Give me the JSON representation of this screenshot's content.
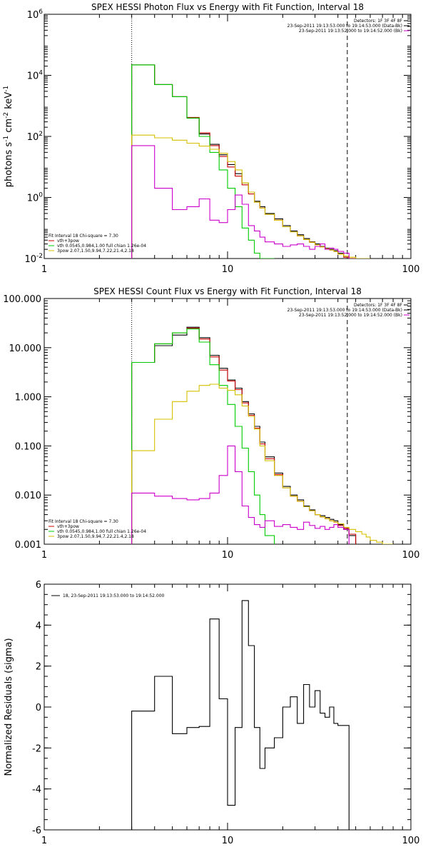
{
  "chart_data": [
    {
      "type": "line",
      "title": "SPEX HESSI Photon Flux vs Energy with Fit Function, Interval 18",
      "ylabel_html": "photons s<tspan dy='-5' font-size='9'>-1</tspan><tspan dy='5'> cm</tspan><tspan dy='-5' font-size='9'>-2</tspan><tspan dy='5'> keV</tspan><tspan dy='-5' font-size='9'>-1</tspan>",
      "ylabel": "photons s-1 cm-2 keV-1",
      "xscale": "log",
      "yscale": "log",
      "xlim": [
        1,
        100
      ],
      "ylim": [
        0.01,
        1000000
      ],
      "xticks": [
        {
          "v": 1,
          "label": "1"
        },
        {
          "v": 10,
          "label": "10"
        },
        {
          "v": 100,
          "label": "100"
        }
      ],
      "yticks": [
        {
          "v": 0.01,
          "label": "10",
          "exp": "-2"
        },
        {
          "v": 1,
          "label": "10",
          "exp": "0"
        },
        {
          "v": 100,
          "label": "10",
          "exp": "2"
        },
        {
          "v": 10000,
          "label": "10",
          "exp": "4"
        },
        {
          "v": 1000000,
          "label": "10",
          "exp": "6"
        }
      ],
      "vlines": [
        {
          "x": 3.0,
          "style": "dotted"
        },
        {
          "x": 45,
          "style": "dashed"
        }
      ],
      "legend_top": {
        "header": "Detectors: 1F 3F 4F 8F",
        "items": [
          {
            "label": "23-Sep-2011 19:13:53.000 to 19:14:53.000 (Data-Bk)",
            "color": "#000000"
          },
          {
            "label": "23-Sep-2011 19:13:52.000 to 19:14:52.000 (Bk)",
            "color": "#cc00cc"
          }
        ]
      },
      "legend_bottom": {
        "header": "Fit Interval 18   Chi-square = 7.30",
        "items": [
          {
            "label": "vth+3pow",
            "color": "#cc0000"
          },
          {
            "label": "vth 0.0545,0.984,1.00  full chian 1.26e-04",
            "color": "#00cc00"
          },
          {
            "label": "3pow 2.07,1.50,9.94,7.22,21.4,2.18",
            "color": "#d4c000"
          }
        ]
      },
      "edges": [
        3.0,
        3.5,
        4.0,
        4.5,
        5.0,
        5.5,
        6.0,
        6.5,
        7.0,
        7.5,
        8.0,
        8.5,
        9.0,
        9.5,
        10.0,
        10.5,
        11.0,
        12.0,
        13.0,
        14.0,
        15.0,
        16.0,
        18.0,
        20.0,
        22.0,
        24.0,
        26.0,
        28.0,
        30.0,
        32.0,
        34.0,
        36.0,
        38.0,
        40.0,
        43.0,
        46.0,
        50.0,
        54.0,
        57.0,
        60.0
      ],
      "series": [
        {
          "name": "Data-Bk",
          "color": "#000000",
          "values": [
            22000,
            22000,
            5000,
            5000,
            2000,
            2000,
            400,
            400,
            120,
            120,
            55,
            55,
            25,
            25,
            12,
            12,
            6,
            3,
            1.5,
            0.75,
            0.5,
            0.3,
            0.2,
            0.12,
            0.08,
            0.06,
            0.045,
            0.035,
            0.03,
            0.025,
            0.022,
            0.02,
            0.018,
            0.015,
            0.012,
            0.01,
            null,
            null,
            null
          ]
        },
        {
          "name": "vth+3pow",
          "color": "#cc0000",
          "values": [
            22000,
            22000,
            5000,
            5000,
            2000,
            2000,
            420,
            420,
            130,
            130,
            50,
            50,
            22,
            22,
            10,
            10,
            5,
            2.6,
            1.3,
            0.7,
            0.45,
            0.28,
            0.18,
            0.11,
            0.075,
            0.055,
            0.042,
            0.034,
            0.028,
            0.024,
            0.021,
            0.019,
            0.017,
            0.014,
            0.011,
            0.009,
            null,
            null,
            null
          ]
        },
        {
          "name": "vth",
          "color": "#00cc00",
          "values": [
            22000,
            22000,
            5000,
            5000,
            2000,
            2000,
            400,
            400,
            100,
            100,
            30,
            30,
            8,
            8,
            2,
            2,
            0.5,
            0.1,
            0.04,
            0.015,
            0.01,
            0.01,
            null,
            null,
            null,
            null,
            null,
            null,
            null,
            null,
            null,
            null,
            null,
            null,
            null,
            null,
            null,
            null,
            null
          ]
        },
        {
          "name": "3pow",
          "color": "#d4c000",
          "values": [
            110,
            110,
            90,
            90,
            75,
            75,
            60,
            60,
            48,
            48,
            38,
            38,
            28,
            28,
            15,
            15,
            8,
            3,
            1.5,
            0.7,
            0.45,
            0.28,
            0.18,
            0.11,
            0.075,
            0.055,
            0.042,
            0.034,
            0.028,
            0.024,
            0.021,
            0.019,
            0.017,
            0.014,
            0.012,
            0.011,
            0.0095,
            0.009,
            0.008
          ]
        },
        {
          "name": "Bk",
          "color": "#cc00cc",
          "values": [
            50,
            50,
            2.0,
            2.0,
            0.4,
            0.4,
            0.5,
            0.5,
            0.9,
            0.9,
            0.18,
            0.18,
            0.15,
            0.15,
            0.4,
            0.4,
            1.2,
            0.6,
            0.12,
            0.08,
            0.05,
            0.035,
            0.03,
            0.025,
            0.028,
            0.03,
            0.025,
            0.02,
            0.025,
            0.03,
            0.02,
            0.022,
            0.02,
            0.017,
            0.015,
            null,
            null,
            null,
            null
          ]
        }
      ]
    },
    {
      "type": "line",
      "title": "SPEX HESSI Count Flux vs Energy with Fit Function, Interval 18",
      "xscale": "log",
      "yscale": "log",
      "xlim": [
        1,
        100
      ],
      "ylim": [
        0.001,
        100
      ],
      "xticks": [
        {
          "v": 1,
          "label": "1"
        },
        {
          "v": 10,
          "label": "10"
        },
        {
          "v": 100,
          "label": "100"
        }
      ],
      "yticks": [
        {
          "v": 0.001,
          "label": "0.001"
        },
        {
          "v": 0.01,
          "label": "0.010"
        },
        {
          "v": 0.1,
          "label": "0.100"
        },
        {
          "v": 1,
          "label": "1.000"
        },
        {
          "v": 10,
          "label": "10.000"
        },
        {
          "v": 100,
          "label": "100.000"
        }
      ],
      "vlines": [
        {
          "x": 3.0,
          "style": "dotted"
        },
        {
          "x": 45,
          "style": "dashed"
        }
      ],
      "legend_top": {
        "header": "Detectors: 1F 3F 4F 8F",
        "items": [
          {
            "label": "23-Sep-2011 19:13:53.000 to 19:14:53.000 (Data-Bk)",
            "color": "#000000"
          },
          {
            "label": "23-Sep-2011 19:13:52.000 to 19:14:52.000 (Bk)",
            "color": "#cc00cc"
          }
        ]
      },
      "legend_bottom": {
        "header": "Fit Interval 18   Chi-square = 7.30",
        "items": [
          {
            "label": "vth+3pow",
            "color": "#cc0000"
          },
          {
            "label": "vth 0.0545,0.984,1.00  full chian 1.26e-04",
            "color": "#00cc00"
          },
          {
            "label": "3pow 2.07,1.50,9.94,7.22,21.4,2.18",
            "color": "#d4c000"
          }
        ]
      },
      "edges": [
        3.0,
        4.0,
        5.0,
        6.0,
        7.0,
        8.0,
        9.0,
        10.0,
        11.0,
        12.0,
        13.0,
        14.0,
        15.0,
        16.0,
        18.0,
        20.0,
        22.0,
        24.0,
        26.0,
        28.0,
        30.0,
        32.0,
        34.0,
        36.0,
        38.0,
        40.0,
        43.0,
        46.0,
        50.0,
        54.0,
        57.0,
        60.0,
        65.0,
        70.0,
        75.0,
        80.0
      ],
      "series": [
        {
          "name": "Data-Bk",
          "color": "#000000",
          "values": [
            5,
            11,
            18,
            26,
            16,
            7,
            3.8,
            2.2,
            1.5,
            0.8,
            0.45,
            0.25,
            0.12,
            0.06,
            0.028,
            0.015,
            0.01,
            0.008,
            0.006,
            0.005,
            0.004,
            0.0038,
            0.0035,
            0.0032,
            0.003,
            0.0025,
            0.002,
            0.0015,
            null,
            null,
            null,
            null,
            null,
            null,
            null
          ]
        },
        {
          "name": "vth+3pow",
          "color": "#cc0000",
          "values": [
            5,
            12,
            20,
            25,
            15,
            6.5,
            3.5,
            2.1,
            1.4,
            0.75,
            0.42,
            0.23,
            0.11,
            0.055,
            0.026,
            0.014,
            0.0095,
            0.0075,
            0.0058,
            0.0048,
            0.004,
            0.0036,
            0.0033,
            0.003,
            0.0028,
            0.0024,
            0.0021,
            0.0016,
            null,
            null,
            null,
            null,
            null,
            null,
            null
          ]
        },
        {
          "name": "vth",
          "color": "#00cc00",
          "values": [
            5,
            12,
            20,
            24,
            13,
            4.5,
            1.7,
            0.7,
            0.25,
            0.09,
            0.03,
            0.01,
            0.004,
            0.0015,
            null,
            null,
            null,
            null,
            null,
            null,
            null,
            null,
            null,
            null,
            null,
            null,
            null,
            null,
            null,
            null,
            null,
            null,
            null,
            null,
            null
          ]
        },
        {
          "name": "3pow",
          "color": "#d4c000",
          "values": [
            0.08,
            0.35,
            0.8,
            1.3,
            1.7,
            1.8,
            1.5,
            1.35,
            1.1,
            0.65,
            0.4,
            0.22,
            0.1,
            0.05,
            0.025,
            0.014,
            0.0095,
            0.0075,
            0.0058,
            0.0048,
            0.004,
            0.0036,
            0.0033,
            0.003,
            0.0028,
            0.0026,
            0.0022,
            0.002,
            0.0018,
            0.0016,
            0.0014,
            0.0012,
            0.0011,
            0.001,
            0.0009
          ]
        },
        {
          "name": "Bk",
          "color": "#cc00cc",
          "values": [
            0.011,
            0.0095,
            0.0085,
            0.008,
            0.0085,
            0.011,
            0.025,
            0.1,
            0.03,
            0.006,
            0.0035,
            0.0025,
            0.0022,
            0.003,
            0.0023,
            0.0025,
            0.0022,
            0.002,
            0.0028,
            0.0024,
            0.0021,
            0.0023,
            0.002,
            0.0022,
            0.0025,
            0.0022,
            0.002,
            null,
            null,
            null,
            null,
            null,
            null,
            null,
            null
          ]
        }
      ]
    },
    {
      "type": "line",
      "title": "",
      "ylabel": "Normalized Residuals (sigma)",
      "xscale": "log",
      "yscale": "linear",
      "xlim": [
        1,
        100
      ],
      "ylim": [
        -6,
        6
      ],
      "xticks": [
        {
          "v": 1,
          "label": "1"
        },
        {
          "v": 10,
          "label": "10"
        },
        {
          "v": 100,
          "label": "100"
        }
      ],
      "yticks": [
        {
          "v": -6,
          "label": "-6"
        },
        {
          "v": -4,
          "label": "-4"
        },
        {
          "v": -2,
          "label": "-2"
        },
        {
          "v": 0,
          "label": "0"
        },
        {
          "v": 2,
          "label": "2"
        },
        {
          "v": 4,
          "label": "4"
        },
        {
          "v": 6,
          "label": "6"
        }
      ],
      "legend_top_left": {
        "label": "18, 23-Sep-2011 19:13:53.000 to 19:14:52.000",
        "color": "#000000"
      },
      "edges": [
        3.0,
        3.5,
        4.0,
        4.5,
        5.0,
        5.5,
        6.0,
        6.5,
        7.0,
        7.5,
        8.0,
        8.5,
        9.0,
        9.5,
        10.0,
        10.5,
        11.0,
        12.0,
        13.0,
        14.0,
        15.0,
        16.0,
        18.0,
        20.0,
        22.0,
        24.0,
        26.0,
        28.0,
        30.0,
        32.0,
        34.0,
        36.0,
        38.0,
        40.0,
        43.0,
        46.0
      ],
      "series": [
        {
          "name": "residuals",
          "color": "#000000",
          "values": [
            -0.2,
            -0.2,
            1.5,
            1.5,
            -1.3,
            -1.3,
            -1.0,
            -1.0,
            -0.95,
            -0.95,
            4.3,
            4.3,
            0.4,
            0.4,
            -4.8,
            -4.8,
            -1.0,
            5.2,
            3.0,
            -1.0,
            -3.0,
            -2.0,
            -1.5,
            0.0,
            0.5,
            -0.8,
            1.1,
            0.0,
            0.8,
            -0.3,
            -0.5,
            0.0,
            -0.8,
            -0.9,
            -0.9
          ]
        }
      ]
    }
  ]
}
